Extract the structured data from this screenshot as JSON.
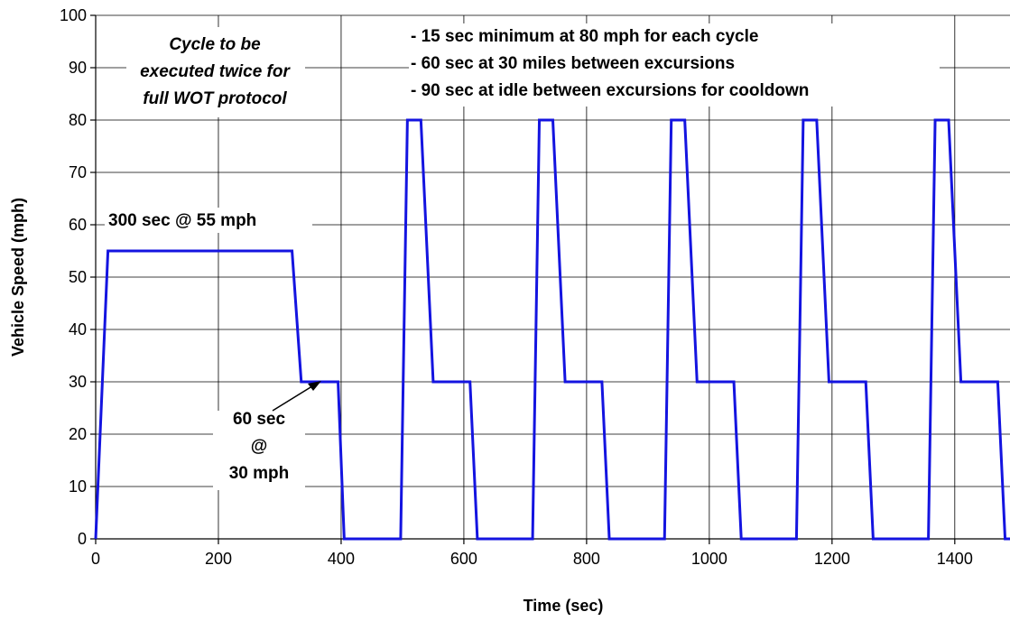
{
  "chart_data": {
    "type": "line",
    "title": "",
    "xlabel": "Time (sec)",
    "ylabel": "Vehicle Speed (mph)",
    "xlim": [
      0,
      1490
    ],
    "ylim": [
      0,
      100
    ],
    "xticks": [
      0,
      200,
      400,
      600,
      800,
      1000,
      1200,
      1400
    ],
    "yticks": [
      0,
      10,
      20,
      30,
      40,
      50,
      60,
      70,
      80,
      90,
      100
    ],
    "grid": true,
    "legend": "none",
    "series_color": "#1414e0",
    "series": [
      {
        "x": [
          0,
          20,
          320,
          335,
          395,
          405,
          497,
          508,
          530,
          550,
          610,
          622,
          712,
          723,
          745,
          765,
          825,
          837,
          927,
          938,
          960,
          980,
          1040,
          1052,
          1142,
          1153,
          1175,
          1195,
          1255,
          1267,
          1357,
          1368,
          1390,
          1410,
          1470,
          1482,
          1490
        ],
        "y": [
          0,
          55,
          55,
          30,
          30,
          0,
          0,
          80,
          80,
          30,
          30,
          0,
          0,
          80,
          80,
          30,
          30,
          0,
          0,
          80,
          80,
          30,
          30,
          0,
          0,
          80,
          80,
          30,
          30,
          0,
          0,
          80,
          80,
          30,
          30,
          0,
          0
        ]
      }
    ],
    "annotations": {
      "cycle": [
        "Cycle to be",
        "executed twice for",
        "full WOT protocol"
      ],
      "bullets": [
        "-  15 sec minimum at 80 mph for each cycle",
        "-  60 sec at 30 miles between excursions",
        "-  90 sec at idle between excursions for cooldown"
      ],
      "steady": "300 sec @ 55 mph",
      "mid": [
        "60 sec",
        "@",
        "30 mph"
      ]
    }
  }
}
